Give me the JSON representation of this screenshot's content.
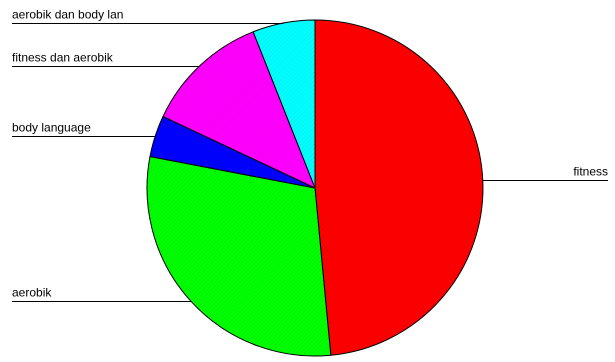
{
  "chart_data": {
    "type": "pie",
    "title": "",
    "legend": "none",
    "slices": [
      {
        "label": "fitness",
        "value": 48.5,
        "color": "#ff0000",
        "label_side": "right"
      },
      {
        "label": "aerobik",
        "value": 29.5,
        "color": "#00ff00",
        "label_side": "left"
      },
      {
        "label": "body language",
        "value": 4.0,
        "color": "#0000ff",
        "label_side": "left"
      },
      {
        "label": "fitness dan aerobik",
        "value": 12.0,
        "color": "#ff00ff",
        "label_side": "left"
      },
      {
        "label": "aerobik dan body lan",
        "value": 6.0,
        "color": "#00ffff",
        "label_side": "left"
      }
    ]
  }
}
